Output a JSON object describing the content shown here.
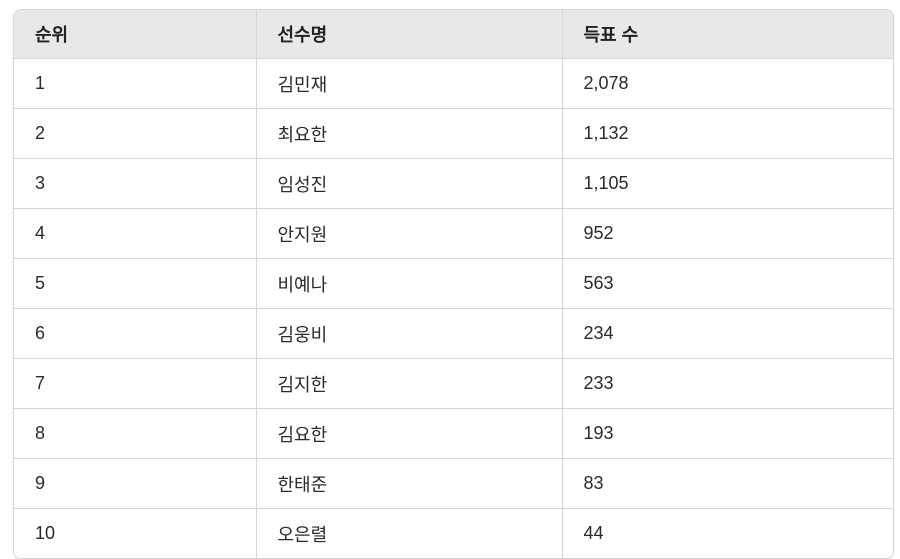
{
  "table": {
    "headers": [
      "순위",
      "선수명",
      "득표 수"
    ],
    "rows": [
      [
        "1",
        "김민재",
        "2,078"
      ],
      [
        "2",
        "최요한",
        "1,132"
      ],
      [
        "3",
        "임성진",
        "1,105"
      ],
      [
        "4",
        "안지원",
        "952"
      ],
      [
        "5",
        "비예나",
        "563"
      ],
      [
        "6",
        "김웅비",
        "234"
      ],
      [
        "7",
        "김지한",
        "233"
      ],
      [
        "8",
        "김요한",
        "193"
      ],
      [
        "9",
        "한태준",
        "83"
      ],
      [
        "10",
        "오은렬",
        "44"
      ]
    ]
  }
}
